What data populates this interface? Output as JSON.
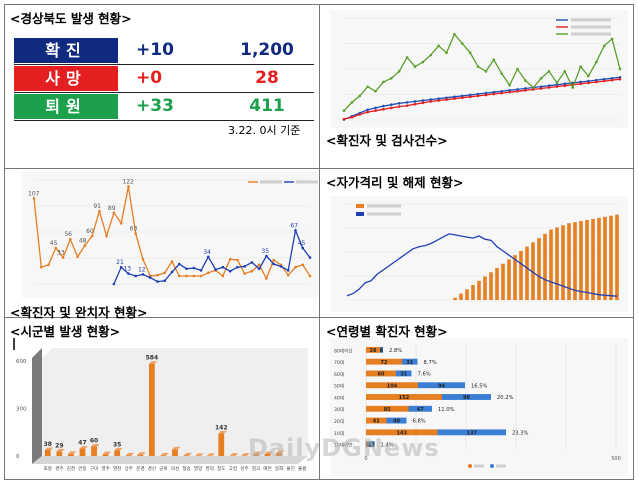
{
  "panels": {
    "status_title": "<경상북도 발생 현황>",
    "tests_title": "<확진자 및 검사건수>",
    "recovery_title": "<확진자 및 완치자 현황>",
    "quarantine_title": "<자가격리 및 해제 현황>",
    "city_title": "<시군별 발생 현황>",
    "age_title": "<연령별 확진자 현황>"
  },
  "status": {
    "rows": [
      {
        "label": "확진",
        "increase": "+10",
        "total": "1,200",
        "label_bg": "#102a80",
        "value_color": "#102a80"
      },
      {
        "label": "사망",
        "increase": "+0",
        "total": "28",
        "label_bg": "#e41f1f",
        "value_color": "#e41f1f"
      },
      {
        "label": "퇴원",
        "increase": "+33",
        "total": "411",
        "label_bg": "#1ca04c",
        "value_color": "#1ca04c"
      }
    ],
    "basis": "3.22. 0시 기준"
  },
  "chart_data": [
    {
      "panel": "확진자 및 검사건수",
      "type": "line",
      "legend_placement": "top-right",
      "series": [
        {
          "color": "#1f4fb5",
          "values": [
            10,
            80,
            150,
            220,
            260,
            300,
            330,
            360,
            380,
            400,
            420,
            440,
            460,
            480,
            500,
            520,
            540,
            560,
            580,
            600,
            620,
            640,
            660,
            680,
            700,
            720,
            740,
            760,
            780,
            800,
            820,
            840,
            860,
            880,
            900,
            920
          ]
        },
        {
          "color": "#e41f1f",
          "values": [
            20,
            60,
            120,
            170,
            200,
            230,
            260,
            290,
            310,
            340,
            370,
            400,
            420,
            440,
            460,
            480,
            500,
            520,
            540,
            560,
            580,
            600,
            620,
            640,
            660,
            680,
            700,
            720,
            740,
            760,
            780,
            800,
            820,
            840,
            860,
            880
          ]
        },
        {
          "color": "#5aa02c",
          "values": [
            200,
            380,
            520,
            720,
            620,
            820,
            900,
            1050,
            1350,
            1150,
            1250,
            1400,
            1600,
            1450,
            1850,
            1650,
            1450,
            1150,
            1050,
            1300,
            1000,
            750,
            1100,
            850,
            700,
            900,
            1050,
            800,
            1050,
            700,
            1150,
            950,
            1250,
            1600,
            1750,
            1100
          ]
        }
      ],
      "ylim": [
        0,
        2200
      ]
    },
    {
      "panel": "확진자 및 완치자 현황",
      "type": "line",
      "legend_placement": "top-right",
      "series": [
        {
          "color": "#e67e22",
          "values": [
            107,
            21,
            24,
            45,
            33,
            56,
            34,
            48,
            60,
            91,
            60,
            89,
            76,
            122,
            63,
            31,
            10,
            11,
            14,
            28,
            10,
            10,
            10,
            10,
            14,
            17,
            10,
            31,
            30,
            13,
            16,
            24,
            7,
            30,
            24,
            11,
            21,
            24,
            10
          ]
        },
        {
          "color": "#1f3fb5",
          "values": [
            null,
            null,
            null,
            null,
            null,
            null,
            null,
            null,
            null,
            null,
            null,
            0,
            21,
            13,
            10,
            12,
            8,
            3,
            4,
            15,
            25,
            19,
            20,
            17,
            34,
            18,
            21,
            16,
            21,
            22,
            27,
            19,
            35,
            25,
            22,
            17,
            67,
            45,
            33
          ]
        }
      ],
      "labels_orange": [
        "107",
        "56",
        "91",
        "89",
        "122",
        "63",
        "45",
        "60",
        "48",
        "33"
      ],
      "labels_blue": [
        "21",
        "13",
        "12",
        "34",
        "35",
        "67",
        "45"
      ],
      "ylim": [
        0,
        130
      ]
    },
    {
      "panel": "자가격리 및 해제 현황",
      "type": "bar",
      "legend_placement": "top-left",
      "series": [
        {
          "color": "#e67e22",
          "values": [
            0,
            0,
            0,
            0,
            0,
            0,
            0,
            0,
            0,
            0,
            0,
            0,
            0,
            0,
            0,
            0,
            0,
            0,
            100,
            300,
            500,
            700,
            900,
            1100,
            1300,
            1500,
            1700,
            1900,
            2100,
            2300,
            2500,
            2700,
            2900,
            3100,
            3300,
            3400,
            3500,
            3600,
            3650,
            3700,
            3750,
            3800,
            3850,
            3900,
            3950,
            4000
          ]
        },
        {
          "color": "#1f3fb5",
          "values": [
            200,
            300,
            500,
            800,
            900,
            1200,
            1400,
            1600,
            1800,
            2000,
            2200,
            2400,
            2500,
            2550,
            2650,
            2800,
            2950,
            3100,
            3050,
            3000,
            2950,
            2900,
            3000,
            2850,
            2800,
            2500,
            2300,
            2100,
            1900,
            1700,
            1500,
            1300,
            1100,
            950,
            850,
            750,
            650,
            550,
            450,
            400,
            350,
            300,
            250,
            220,
            200,
            180
          ]
        }
      ],
      "ylim": [
        0,
        4500
      ]
    },
    {
      "panel": "시군별 발생 현황",
      "type": "bar",
      "categories": [
        "포항",
        "경주",
        "김천",
        "안동",
        "구미",
        "영주",
        "영천",
        "상주",
        "문경",
        "경산",
        "군위",
        "의성",
        "청송",
        "영양",
        "영덕",
        "청도",
        "고령",
        "성주",
        "칠곡",
        "예천",
        "봉화",
        "울진",
        "울릉"
      ],
      "values": [
        38,
        29,
        14,
        47,
        60,
        12,
        35,
        4,
        8,
        584,
        3,
        42,
        4,
        1,
        1,
        142,
        2,
        2,
        12,
        13,
        20,
        0,
        0
      ],
      "labels": [
        "38",
        "29",
        "47",
        "60",
        "35",
        "584",
        "142"
      ],
      "ylim": [
        0,
        620
      ],
      "ytick_labels": [
        "600",
        "300",
        "0"
      ]
    },
    {
      "panel": "연령별 확진자 현황",
      "type": "bar",
      "legend_placement": "bottom",
      "categories": [
        "80대이상",
        "70대",
        "60대",
        "50대",
        "40대",
        "30대",
        "20대",
        "10대",
        "10대미만"
      ],
      "series": [
        {
          "color": "#e67e22",
          "values": [
            28,
            72,
            60,
            104,
            152,
            85,
            41,
            143,
            5
          ]
        },
        {
          "color": "#3a7fd5",
          "values": [
            6,
            31,
            31,
            94,
            98,
            47,
            40,
            137,
            12
          ]
        }
      ],
      "bar_labels_orange": [
        "28",
        "72",
        "60",
        "104",
        "152",
        "85",
        "41",
        "143",
        "5"
      ],
      "bar_labels_blue": [
        "6",
        "31",
        "31",
        "94",
        "98",
        "47",
        "40",
        "137",
        "12"
      ],
      "percent_labels": [
        "2.8%",
        "8.7%",
        "7.6%",
        "16.5%",
        "20.2%",
        "11.0%",
        "6.8%",
        "23.3%",
        "1.4%"
      ],
      "xlim": [
        0,
        500
      ],
      "xtick_labels": [
        "0",
        "500"
      ]
    }
  ],
  "watermark": "DailyDGNews"
}
